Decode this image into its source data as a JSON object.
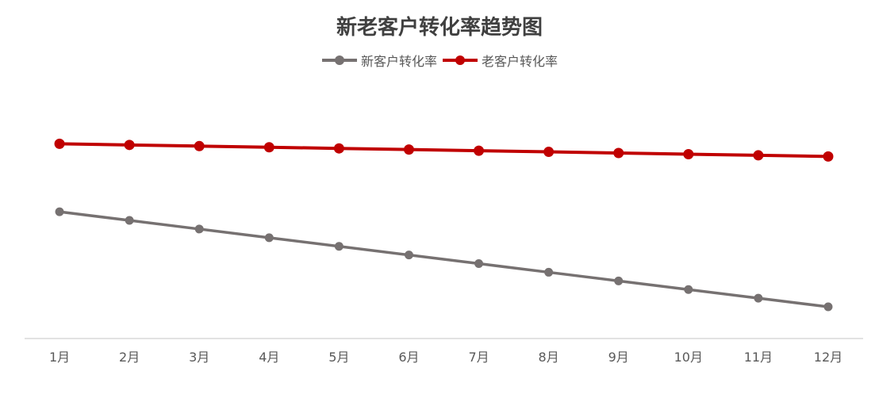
{
  "chart_data": {
    "type": "line",
    "title": "新老客户转化率趋势图",
    "categories": [
      "1月",
      "2月",
      "3月",
      "4月",
      "5月",
      "6月",
      "7月",
      "8月",
      "9月",
      "10月",
      "11月",
      "12月"
    ],
    "series": [
      {
        "name": "新客户转化率",
        "color": "#767171",
        "values": [
          0.79,
          0.76,
          0.73,
          0.7,
          0.67,
          0.64,
          0.61,
          0.58,
          0.55,
          0.52,
          0.49,
          0.46
        ]
      },
      {
        "name": "老客户转化率",
        "color": "#C00000",
        "values": [
          1.026,
          1.022,
          1.018,
          1.014,
          1.01,
          1.006,
          1.002,
          0.998,
          0.994,
          0.99,
          0.986,
          0.982
        ]
      }
    ],
    "ylim": [
      0.35,
      1.25
    ],
    "xlabel": "",
    "ylabel": "",
    "grid": false,
    "legend": "top-center"
  }
}
